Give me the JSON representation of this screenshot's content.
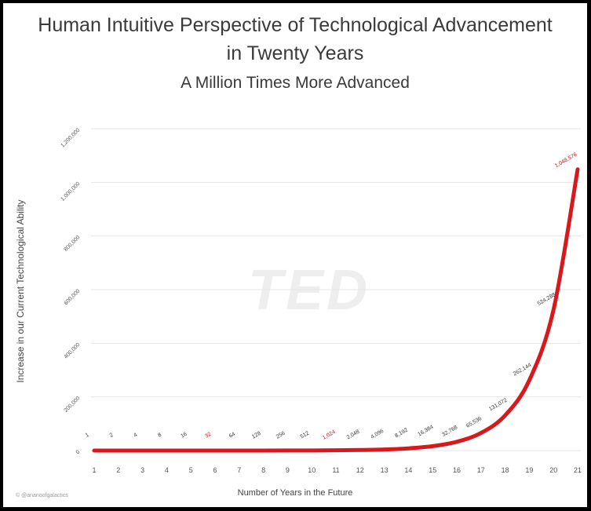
{
  "chart_data": {
    "type": "line",
    "title_line1": "Human Intuitive Perspective of Technological Advancement",
    "title_line2": "in Twenty Years",
    "subtitle": "A Million Times More Advanced",
    "xlabel": "Number of Years in the Future",
    "ylabel": "Increase in our Current Technological Ability",
    "x": [
      1,
      2,
      3,
      4,
      5,
      6,
      7,
      8,
      9,
      10,
      11,
      12,
      13,
      14,
      15,
      16,
      17,
      18,
      19,
      20,
      21
    ],
    "y": [
      1,
      2,
      4,
      8,
      16,
      32,
      64,
      128,
      256,
      512,
      1024,
      2048,
      4096,
      8192,
      16384,
      32768,
      65536,
      131072,
      262144,
      524288,
      1048576
    ],
    "data_labels": [
      "1",
      "2",
      "4",
      "8",
      "16",
      "32",
      "64",
      "128",
      "256",
      "512",
      "1,024",
      "2,048",
      "4,096",
      "8,192",
      "16,384",
      "32,768",
      "65,536",
      "131,072",
      "262,144",
      "524,288",
      "1,048,576"
    ],
    "highlight_labels": [
      "32",
      "1,024",
      "1,048,576"
    ],
    "ylim": [
      0,
      1200000
    ],
    "yticks": [
      0,
      200000,
      400000,
      600000,
      800000,
      1000000,
      1200000
    ],
    "ytick_labels": [
      "0",
      "200,000",
      "400,000",
      "600,000",
      "800,000",
      "1,000,000",
      "1,200,000"
    ],
    "grid": true,
    "line_color": "#d7191c",
    "highlight_color": "#d7191c",
    "text_color": "#3a3a3a",
    "watermark": "TED",
    "credit": "© @ananoofgalactics"
  }
}
